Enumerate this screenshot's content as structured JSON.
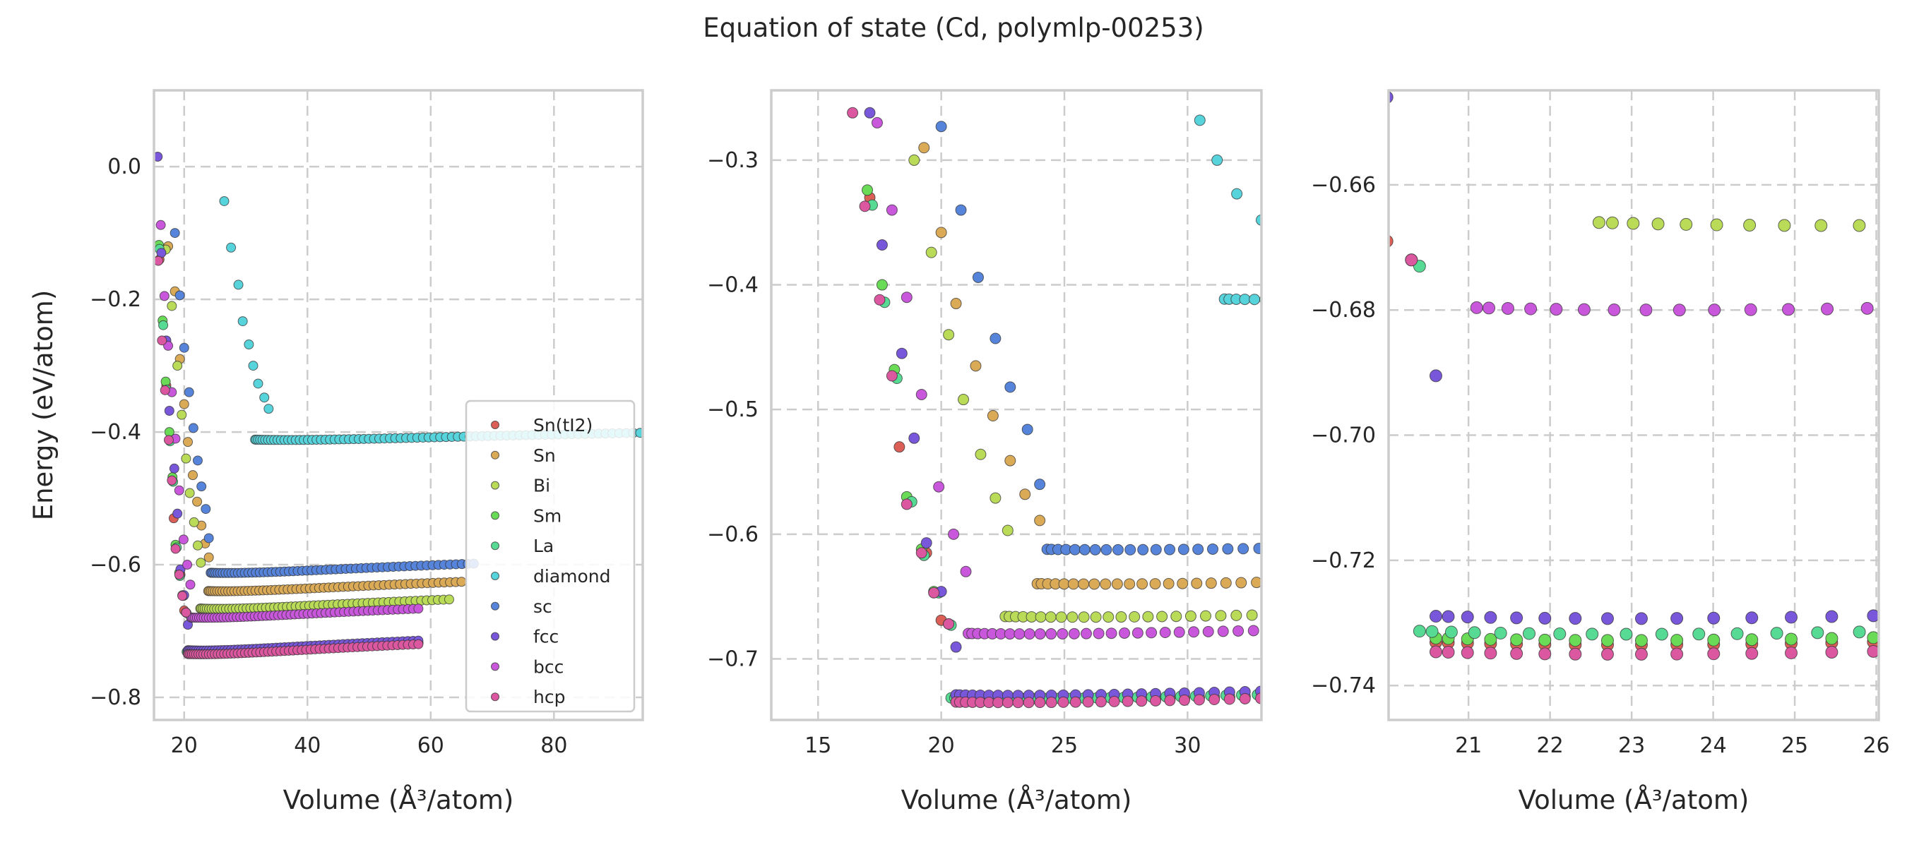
{
  "chart_data": {
    "type": "scatter",
    "title": "Equation of state (Cd, polymlp-00253)",
    "legend": {
      "placement": "lower-right",
      "panel": 0,
      "entries": [
        "Sn(tI2)",
        "Sn",
        "Bi",
        "Sm",
        "La",
        "diamond",
        "sc",
        "fcc",
        "bcc",
        "hcp"
      ]
    },
    "series_colors": {
      "Sn(tI2)": "#db5f57",
      "Sn": "#dbaa57",
      "Bi": "#b9db57",
      "Sm": "#69db57",
      "La": "#57db94",
      "diamond": "#57d3db",
      "sc": "#5784db",
      "fcc": "#7957db",
      "bcc": "#c957db",
      "hcp": "#db57a0"
    },
    "panels": [
      {
        "xlabel": "Volume (Å³/atom)",
        "ylabel": "Energy (eV/atom)",
        "xlim": [
          15.1,
          94.4
        ],
        "ylim": [
          -0.834,
          0.115
        ],
        "xticks": [
          20,
          40,
          60,
          80
        ],
        "xtick_labels": [
          "20",
          "40",
          "60",
          "80"
        ],
        "yticks": [
          0.0,
          -0.2,
          -0.4,
          -0.6,
          -0.8
        ],
        "ytick_labels": [
          "0.0",
          "−0.2",
          "−0.4",
          "−0.6",
          "−0.8"
        ],
        "grid": true
      },
      {
        "xlabel": "Volume (Å³/atom)",
        "ylabel": "",
        "xlim": [
          13.1,
          33.0
        ],
        "ylim": [
          -0.749,
          -0.244
        ],
        "xticks": [
          15,
          20,
          25,
          30
        ],
        "xtick_labels": [
          "15",
          "20",
          "25",
          "30"
        ],
        "yticks": [
          -0.3,
          -0.4,
          -0.5,
          -0.6,
          -0.7
        ],
        "ytick_labels": [
          "−0.3",
          "−0.4",
          "−0.5",
          "−0.6",
          "−0.7"
        ],
        "grid": true
      },
      {
        "xlabel": "Volume (Å³/atom)",
        "ylabel": "",
        "xlim": [
          20.02,
          26.03
        ],
        "ylim": [
          -0.7455,
          -0.6449
        ],
        "xticks": [
          21,
          22,
          23,
          24,
          25,
          26
        ],
        "xtick_labels": [
          "21",
          "22",
          "23",
          "24",
          "25",
          "26"
        ],
        "yticks": [
          -0.66,
          -0.68,
          -0.7,
          -0.72,
          -0.74
        ],
        "ytick_labels": [
          "−0.66",
          "−0.68",
          "−0.70",
          "−0.72",
          "−0.74"
        ],
        "grid": true
      }
    ],
    "series": [
      {
        "name": "Sn(tI2)",
        "eos": {
          "E0": -0.7335,
          "V0": 22.95,
          "B": 0.0092,
          "Vmin": 20.6,
          "Vmax": 58.0,
          "n": 60
        },
        "sparse": [
          [
            16.0,
            -0.14
          ],
          [
            17.1,
            -0.33
          ],
          [
            18.3,
            -0.53
          ],
          [
            19.4,
            -0.615
          ],
          [
            20.0,
            -0.669
          ]
        ]
      },
      {
        "name": "Sn",
        "eos": {
          "E0": -0.64,
          "V0": 26.3,
          "B": 0.0078,
          "Vmin": 23.9,
          "Vmax": 65.0,
          "n": 60
        },
        "sparse": [
          [
            17.4,
            -0.12
          ],
          [
            18.5,
            -0.188
          ],
          [
            19.3,
            -0.29
          ],
          [
            20.0,
            -0.358
          ],
          [
            20.6,
            -0.415
          ],
          [
            21.4,
            -0.465
          ],
          [
            22.1,
            -0.505
          ],
          [
            22.8,
            -0.541
          ],
          [
            23.4,
            -0.568
          ],
          [
            24.0,
            -0.589
          ]
        ]
      },
      {
        "name": "Bi",
        "eos": {
          "E0": -0.6665,
          "V0": 25.5,
          "B": 0.008,
          "Vmin": 22.6,
          "Vmax": 63.0,
          "n": 60
        },
        "sparse": [
          [
            17.0,
            -0.125
          ],
          [
            18.0,
            -0.21
          ],
          [
            18.9,
            -0.3
          ],
          [
            19.6,
            -0.374
          ],
          [
            20.3,
            -0.44
          ],
          [
            20.9,
            -0.492
          ],
          [
            21.6,
            -0.536
          ],
          [
            22.2,
            -0.571
          ],
          [
            22.7,
            -0.597
          ]
        ]
      },
      {
        "name": "Sm",
        "eos": {
          "E0": -0.7328,
          "V0": 22.9,
          "B": 0.009,
          "Vmin": 20.6,
          "Vmax": 58.0,
          "n": 60
        },
        "sparse": [
          [
            15.9,
            -0.118
          ],
          [
            16.5,
            -0.232
          ],
          [
            17.0,
            -0.324
          ],
          [
            17.6,
            -0.4
          ],
          [
            18.1,
            -0.468
          ],
          [
            18.6,
            -0.57
          ],
          [
            19.2,
            -0.612
          ],
          [
            19.7,
            -0.646
          ],
          [
            20.3,
            -0.672
          ]
        ]
      },
      {
        "name": "La",
        "eos": {
          "E0": -0.7318,
          "V0": 23.05,
          "B": 0.0088,
          "Vmin": 20.4,
          "Vmax": 58.0,
          "n": 60
        },
        "sparse": [
          [
            16.0,
            -0.124
          ],
          [
            16.6,
            -0.239
          ],
          [
            17.2,
            -0.336
          ],
          [
            17.7,
            -0.414
          ],
          [
            18.2,
            -0.475
          ],
          [
            18.8,
            -0.574
          ],
          [
            19.3,
            -0.617
          ],
          [
            19.9,
            -0.647
          ],
          [
            20.4,
            -0.673
          ]
        ]
      },
      {
        "name": "diamond",
        "eos": {
          "E0": -0.412,
          "V0": 36.6,
          "B": 0.004,
          "Vmin": 31.5,
          "Vmax": 94.0,
          "n": 75
        },
        "sparse": [
          [
            26.5,
            -0.052
          ],
          [
            27.6,
            -0.122
          ],
          [
            28.8,
            -0.178
          ],
          [
            29.5,
            -0.233
          ],
          [
            30.5,
            -0.268
          ],
          [
            31.2,
            -0.3
          ],
          [
            32.0,
            -0.327
          ],
          [
            33.0,
            -0.348
          ],
          [
            33.7,
            -0.365
          ]
        ]
      },
      {
        "name": "sc",
        "eos": {
          "E0": -0.6125,
          "V0": 27.0,
          "B": 0.0075,
          "Vmin": 24.3,
          "Vmax": 67.0,
          "n": 60
        },
        "sparse": [
          [
            18.5,
            -0.1
          ],
          [
            19.3,
            -0.194
          ],
          [
            20.0,
            -0.273
          ],
          [
            20.8,
            -0.34
          ],
          [
            21.5,
            -0.394
          ],
          [
            22.2,
            -0.443
          ],
          [
            22.8,
            -0.482
          ],
          [
            23.5,
            -0.516
          ],
          [
            24.0,
            -0.56
          ]
        ]
      },
      {
        "name": "fcc",
        "eos": {
          "E0": -0.7293,
          "V0": 22.9,
          "B": 0.009,
          "Vmin": 20.6,
          "Vmax": 58.0,
          "n": 60
        },
        "sparse": [
          [
            15.7,
            0.015
          ],
          [
            16.3,
            -0.13
          ],
          [
            17.1,
            -0.262
          ],
          [
            17.6,
            -0.368
          ],
          [
            18.4,
            -0.455
          ],
          [
            18.9,
            -0.523
          ],
          [
            19.4,
            -0.607
          ],
          [
            20.0,
            -0.646
          ],
          [
            20.6,
            -0.6905
          ]
        ]
      },
      {
        "name": "bcc",
        "eos": {
          "E0": -0.68,
          "V0": 23.5,
          "B": 0.0085,
          "Vmin": 21.1,
          "Vmax": 58.0,
          "n": 60
        },
        "sparse": [
          [
            16.2,
            -0.088
          ],
          [
            16.8,
            -0.195
          ],
          [
            17.4,
            -0.27
          ],
          [
            18.0,
            -0.34
          ],
          [
            18.6,
            -0.41
          ],
          [
            19.2,
            -0.488
          ],
          [
            19.9,
            -0.562
          ],
          [
            20.5,
            -0.6
          ],
          [
            21.0,
            -0.63
          ]
        ]
      },
      {
        "name": "hcp",
        "eos": {
          "E0": -0.735,
          "V0": 22.9,
          "B": 0.0092,
          "Vmin": 20.6,
          "Vmax": 58.0,
          "n": 60
        },
        "sparse": [
          [
            15.8,
            -0.142
          ],
          [
            16.4,
            -0.262
          ],
          [
            16.9,
            -0.337
          ],
          [
            17.5,
            -0.412
          ],
          [
            18.0,
            -0.473
          ],
          [
            18.6,
            -0.576
          ],
          [
            19.2,
            -0.615
          ],
          [
            19.7,
            -0.647
          ],
          [
            20.3,
            -0.672
          ]
        ]
      }
    ]
  }
}
